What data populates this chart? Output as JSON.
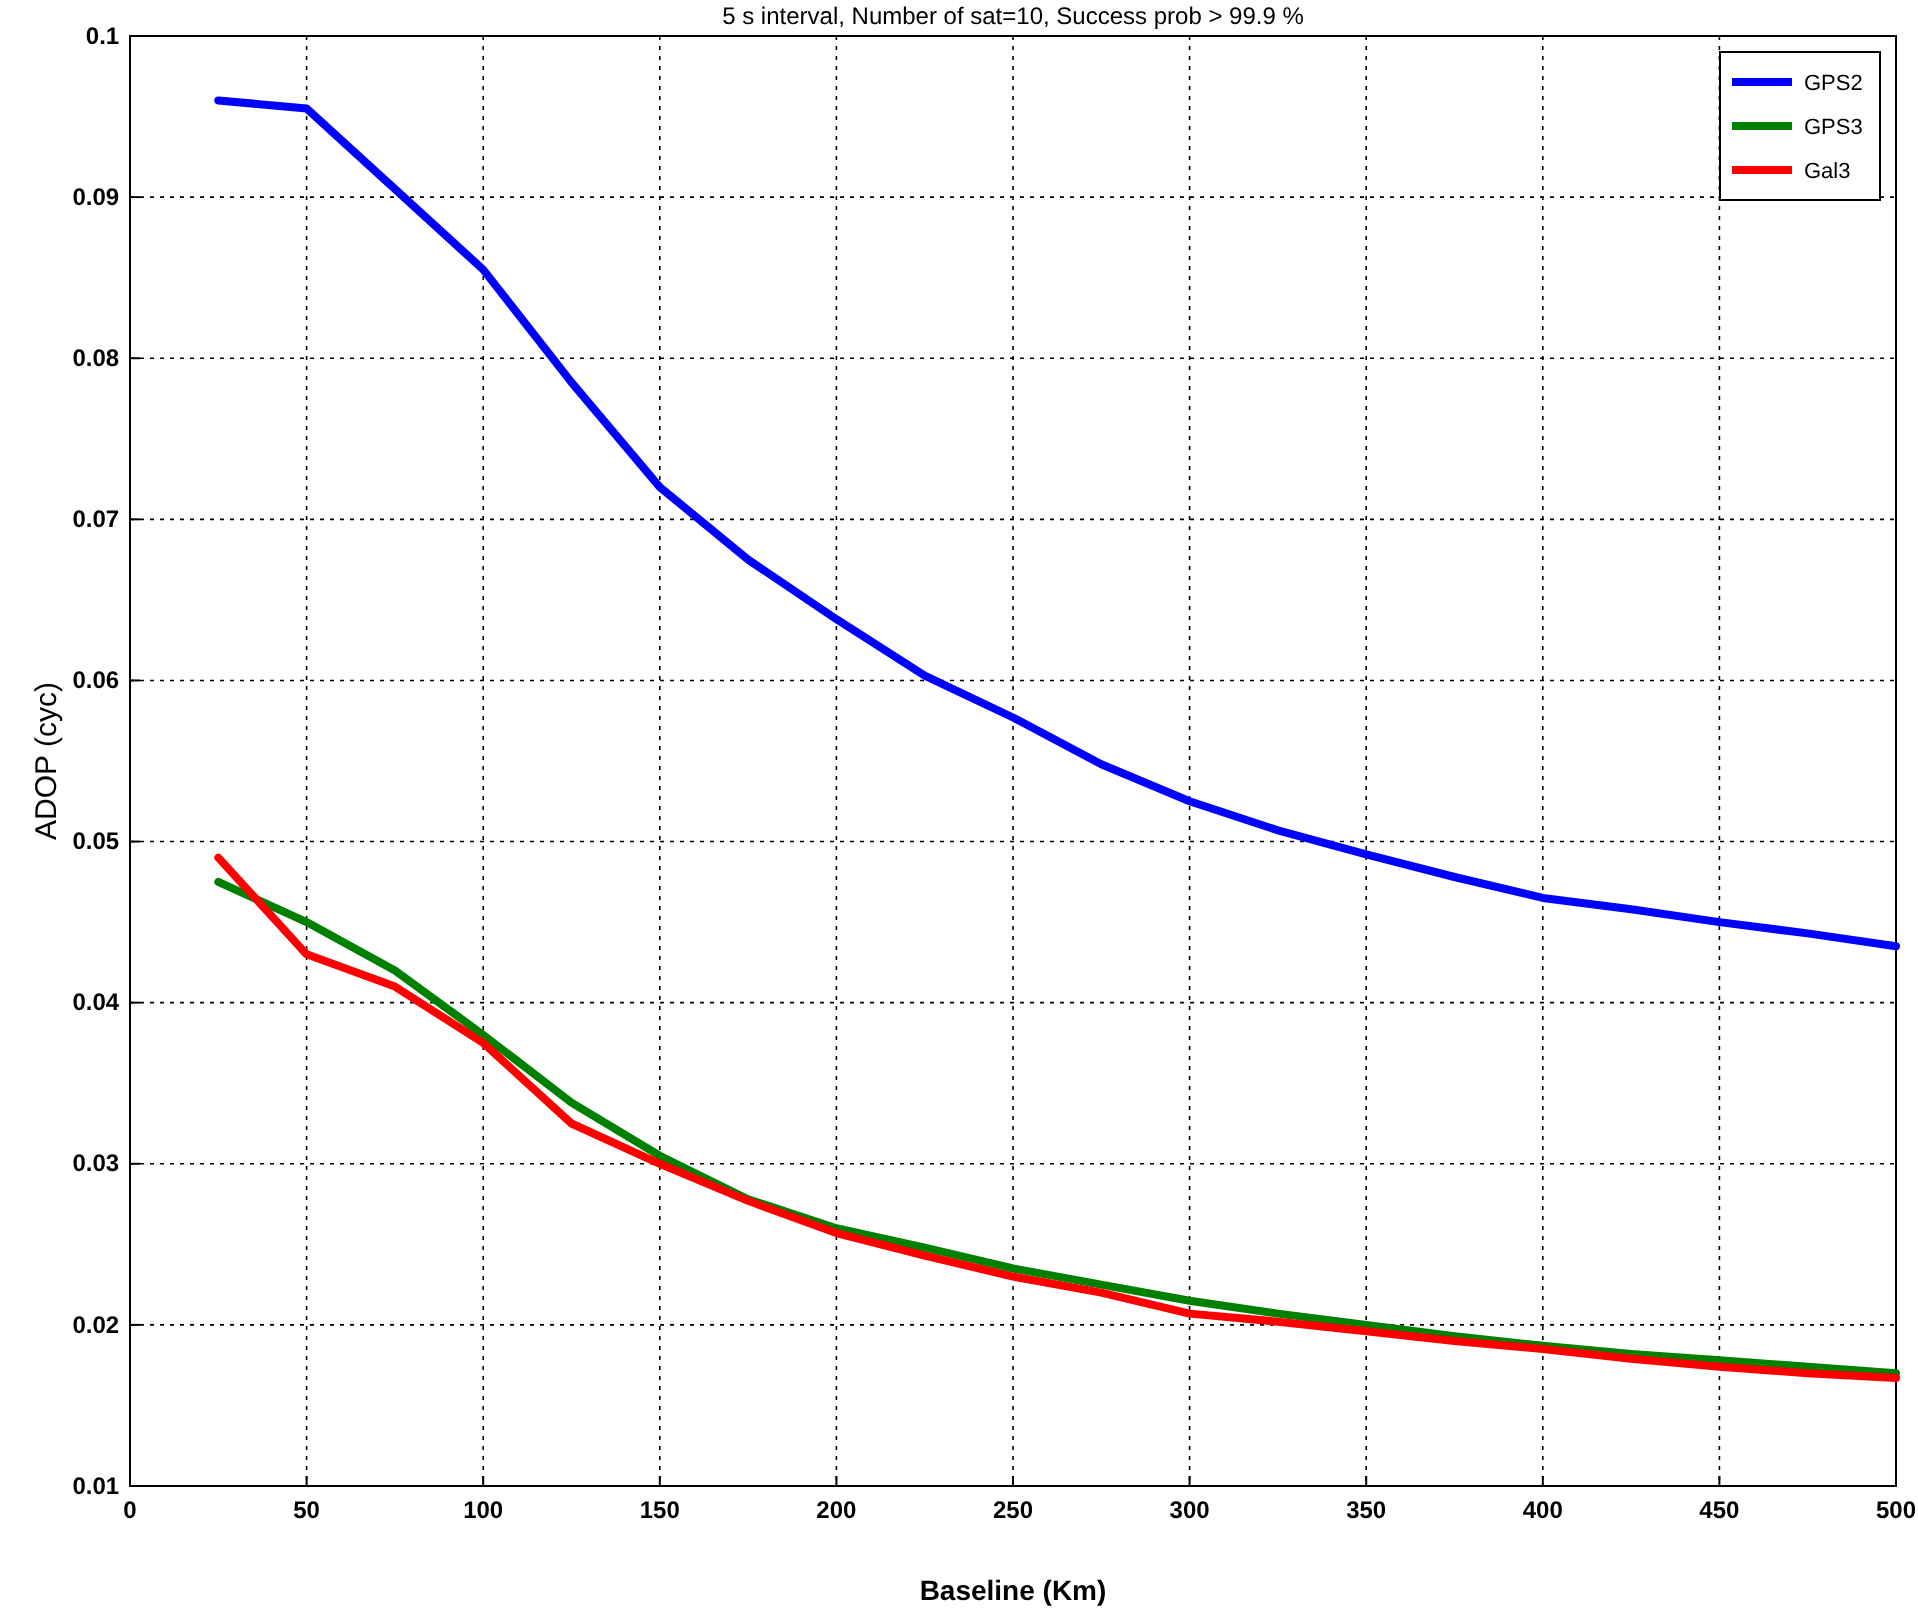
{
  "chart_data": {
    "type": "line",
    "title": "5 s interval, Number of sat=10, Success prob > 99.9 %",
    "xlabel": "Baseline (Km)",
    "ylabel": "ADOP  (cyc)",
    "x": [
      25,
      50,
      75,
      100,
      125,
      150,
      175,
      200,
      225,
      250,
      275,
      300,
      325,
      350,
      375,
      400,
      425,
      450,
      475,
      500
    ],
    "series": [
      {
        "name": "GPS2",
        "color": "#0000ff",
        "values": [
          0.096,
          0.0955,
          0.0905,
          0.0855,
          0.0785,
          0.072,
          0.0675,
          0.0638,
          0.0603,
          0.0577,
          0.0548,
          0.0525,
          0.0507,
          0.0492,
          0.0478,
          0.0465,
          0.0458,
          0.045,
          0.0443,
          0.0435
        ]
      },
      {
        "name": "GPS3",
        "color": "#008000",
        "values": [
          0.0475,
          0.045,
          0.042,
          0.038,
          0.0338,
          0.0305,
          0.0278,
          0.026,
          0.0248,
          0.0235,
          0.0225,
          0.0215,
          0.0207,
          0.02,
          0.0193,
          0.0187,
          0.0182,
          0.0178,
          0.0174,
          0.017
        ]
      },
      {
        "name": "Gal3",
        "color": "#ff0000",
        "values": [
          0.049,
          0.043,
          0.041,
          0.0375,
          0.0325,
          0.03,
          0.0277,
          0.0257,
          0.0243,
          0.023,
          0.022,
          0.0207,
          0.0202,
          0.0196,
          0.019,
          0.0185,
          0.0179,
          0.0174,
          0.017,
          0.0167
        ]
      }
    ],
    "xlim": [
      0,
      500
    ],
    "xticks": [
      0,
      50,
      100,
      150,
      200,
      250,
      300,
      350,
      400,
      450,
      500
    ],
    "ylim": [
      0.01,
      0.1
    ],
    "yticks": [
      0.01,
      0.02,
      0.03,
      0.04,
      0.05,
      0.06,
      0.07,
      0.08,
      0.09,
      0.1
    ],
    "grid": true,
    "legend": "top right",
    "marker": "none",
    "line_style": "solid"
  }
}
